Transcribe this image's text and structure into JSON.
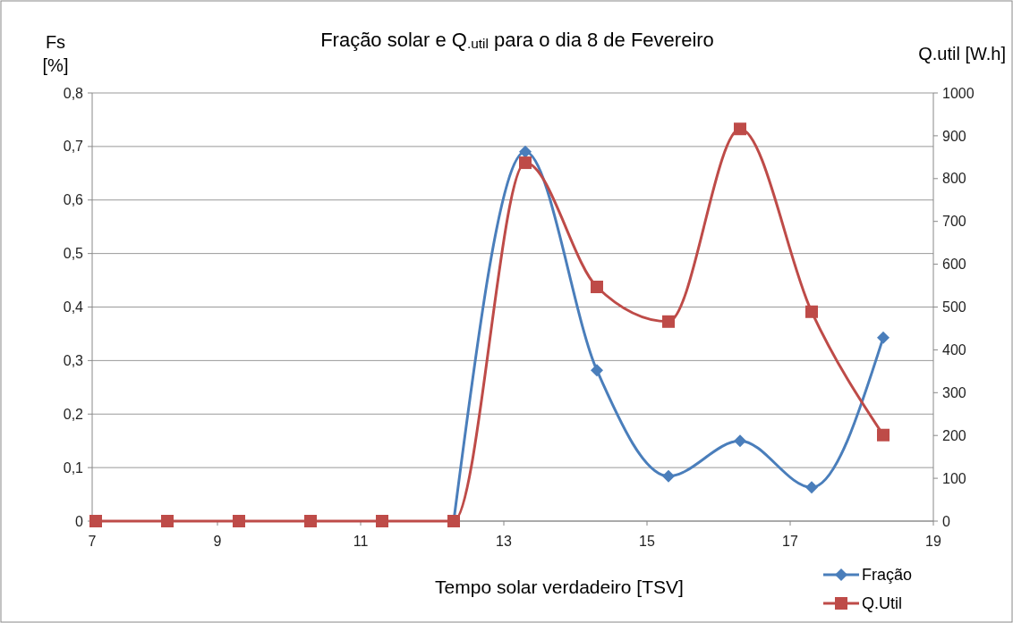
{
  "chart_data": {
    "type": "line",
    "title": "Fração solar e Q$_{.util}$ para o dia 8 de Fevereiro",
    "xlabel": "Tempo solar verdadeiro [TSV]",
    "ylabel": "Fs [%]",
    "y2label": "Q.util [W.h]",
    "x": [
      7.3,
      8.3,
      9.3,
      10.3,
      11.3,
      12.3,
      13.3,
      14.3,
      15.3,
      16.3,
      17.3,
      18.3
    ],
    "series": [
      {
        "name": "Fração",
        "color": "#4a7ebb",
        "marker": "diamond",
        "values": [
          null,
          null,
          null,
          null,
          null,
          0,
          0.69,
          0.282,
          0.084,
          0.15,
          0.063,
          0.343
        ]
      },
      {
        "name": "Q.Util",
        "color": "#be4b48",
        "marker": "square",
        "axis": "y2",
        "values": [
          0,
          0,
          0,
          0,
          0,
          0,
          837,
          547,
          466,
          916,
          489,
          201
        ]
      }
    ],
    "xlim": [
      7.25,
      19
    ],
    "xticks": [
      {
        "value": 7.25,
        "label": "7"
      },
      9,
      11,
      13,
      15,
      17,
      19
    ],
    "ylim": [
      0,
      0.8
    ],
    "yticks": [
      {
        "value": 0,
        "label": "0"
      },
      {
        "value": 0.1,
        "label": "0,1"
      },
      {
        "value": 0.2,
        "label": "0,2"
      },
      {
        "value": 0.3,
        "label": "0,3"
      },
      {
        "value": 0.4,
        "label": "0,4"
      },
      {
        "value": 0.5,
        "label": "0,5"
      },
      {
        "value": 0.6,
        "label": "0,6"
      },
      {
        "value": 0.7,
        "label": "0,7"
      },
      {
        "value": 0.8,
        "label": "0,8"
      }
    ],
    "y2lim": [
      0,
      1000
    ],
    "y2ticks": [
      0,
      100,
      200,
      300,
      400,
      500,
      600,
      700,
      800,
      900,
      1000
    ],
    "grid": "y",
    "legend": "bottom right"
  }
}
